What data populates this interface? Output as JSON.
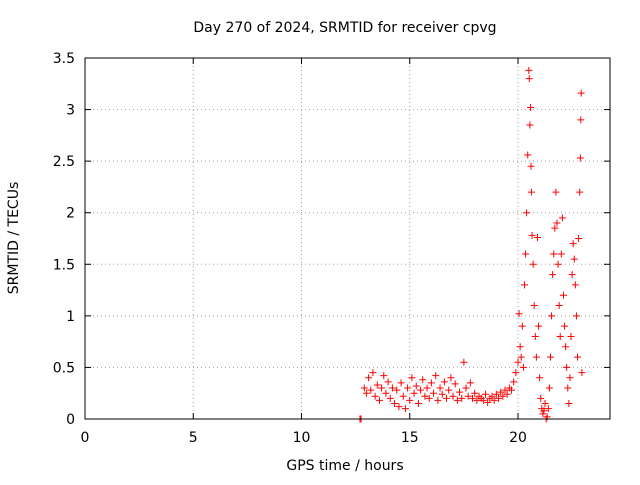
{
  "chart_data": {
    "type": "scatter",
    "title": "Day 270 of 2024, SRMTID for receiver cpvg",
    "xlabel": "GPS time / hours",
    "ylabel": "SRMTID / TECUs",
    "xlim": [
      0,
      24.25
    ],
    "ylim": [
      0,
      3.5
    ],
    "xticks": [
      0,
      5,
      10,
      15,
      20
    ],
    "xtick_labels": [
      "0",
      "5",
      "10",
      "15",
      "20"
    ],
    "yticks": [
      0,
      0.5,
      1,
      1.5,
      2,
      2.5,
      3,
      3.5
    ],
    "ytick_labels": [
      "0",
      "0.5",
      "1",
      "1.5",
      "2",
      "2.5",
      "3",
      "3.5"
    ],
    "grid": true,
    "marker": "+",
    "color": "#ff0000",
    "series": [
      {
        "name": "SRMTID",
        "points": [
          [
            12.7,
            0.0
          ],
          [
            12.75,
            0.0
          ],
          [
            12.9,
            0.3
          ],
          [
            13.0,
            0.25
          ],
          [
            13.1,
            0.4
          ],
          [
            13.2,
            0.28
          ],
          [
            13.3,
            0.45
          ],
          [
            13.4,
            0.22
          ],
          [
            13.5,
            0.33
          ],
          [
            13.6,
            0.18
          ],
          [
            13.7,
            0.3
          ],
          [
            13.8,
            0.42
          ],
          [
            13.9,
            0.25
          ],
          [
            14.0,
            0.36
          ],
          [
            14.1,
            0.2
          ],
          [
            14.2,
            0.3
          ],
          [
            14.3,
            0.15
          ],
          [
            14.4,
            0.28
          ],
          [
            14.5,
            0.12
          ],
          [
            14.6,
            0.35
          ],
          [
            14.7,
            0.22
          ],
          [
            14.8,
            0.1
          ],
          [
            14.9,
            0.3
          ],
          [
            15.0,
            0.18
          ],
          [
            15.1,
            0.4
          ],
          [
            15.2,
            0.25
          ],
          [
            15.3,
            0.32
          ],
          [
            15.4,
            0.15
          ],
          [
            15.5,
            0.28
          ],
          [
            15.6,
            0.38
          ],
          [
            15.7,
            0.22
          ],
          [
            15.8,
            0.3
          ],
          [
            15.9,
            0.2
          ],
          [
            16.0,
            0.35
          ],
          [
            16.1,
            0.25
          ],
          [
            16.2,
            0.42
          ],
          [
            16.3,
            0.18
          ],
          [
            16.4,
            0.3
          ],
          [
            16.5,
            0.24
          ],
          [
            16.6,
            0.36
          ],
          [
            16.7,
            0.2
          ],
          [
            16.8,
            0.28
          ],
          [
            16.9,
            0.4
          ],
          [
            17.0,
            0.22
          ],
          [
            17.1,
            0.34
          ],
          [
            17.2,
            0.18
          ],
          [
            17.3,
            0.26
          ],
          [
            17.4,
            0.2
          ],
          [
            17.5,
            0.55
          ],
          [
            17.6,
            0.3
          ],
          [
            17.7,
            0.22
          ],
          [
            17.8,
            0.35
          ],
          [
            17.9,
            0.2
          ],
          [
            18.0,
            0.25
          ],
          [
            18.1,
            0.18
          ],
          [
            18.2,
            0.22
          ],
          [
            18.3,
            0.2
          ],
          [
            18.4,
            0.18
          ],
          [
            18.5,
            0.24
          ],
          [
            18.6,
            0.16
          ],
          [
            18.7,
            0.2
          ],
          [
            18.8,
            0.22
          ],
          [
            18.9,
            0.18
          ],
          [
            19.0,
            0.24
          ],
          [
            19.1,
            0.2
          ],
          [
            19.2,
            0.26
          ],
          [
            19.3,
            0.22
          ],
          [
            19.4,
            0.28
          ],
          [
            19.5,
            0.24
          ],
          [
            19.6,
            0.3
          ],
          [
            19.7,
            0.28
          ],
          [
            19.8,
            0.36
          ],
          [
            19.9,
            0.45
          ],
          [
            20.0,
            0.55
          ],
          [
            20.05,
            1.02
          ],
          [
            20.1,
            0.7
          ],
          [
            20.15,
            0.6
          ],
          [
            20.2,
            0.9
          ],
          [
            20.25,
            0.5
          ],
          [
            20.3,
            1.3
          ],
          [
            20.35,
            1.6
          ],
          [
            20.4,
            2.0
          ],
          [
            20.45,
            2.56
          ],
          [
            20.5,
            3.38
          ],
          [
            20.52,
            3.3
          ],
          [
            20.55,
            2.85
          ],
          [
            20.58,
            3.02
          ],
          [
            20.6,
            2.45
          ],
          [
            20.62,
            2.2
          ],
          [
            20.65,
            1.78
          ],
          [
            20.7,
            1.5
          ],
          [
            20.75,
            1.1
          ],
          [
            20.8,
            0.8
          ],
          [
            20.85,
            0.6
          ],
          [
            20.9,
            1.76
          ],
          [
            20.95,
            0.9
          ],
          [
            21.0,
            0.4
          ],
          [
            21.05,
            0.2
          ],
          [
            21.1,
            0.1
          ],
          [
            21.15,
            0.05
          ],
          [
            21.2,
            0.08
          ],
          [
            21.25,
            0.15
          ],
          [
            21.3,
            0.0
          ],
          [
            21.35,
            0.02
          ],
          [
            21.4,
            0.1
          ],
          [
            21.45,
            0.3
          ],
          [
            21.5,
            0.6
          ],
          [
            21.55,
            1.0
          ],
          [
            21.6,
            1.4
          ],
          [
            21.65,
            1.6
          ],
          [
            21.7,
            1.85
          ],
          [
            21.75,
            2.2
          ],
          [
            21.8,
            1.9
          ],
          [
            21.85,
            1.5
          ],
          [
            21.9,
            1.1
          ],
          [
            21.95,
            0.8
          ],
          [
            22.0,
            1.6
          ],
          [
            22.05,
            1.95
          ],
          [
            22.1,
            1.2
          ],
          [
            22.15,
            0.9
          ],
          [
            22.2,
            0.7
          ],
          [
            22.25,
            0.5
          ],
          [
            22.3,
            0.3
          ],
          [
            22.35,
            0.15
          ],
          [
            22.4,
            0.4
          ],
          [
            22.45,
            0.8
          ],
          [
            22.5,
            1.4
          ],
          [
            22.55,
            1.7
          ],
          [
            22.6,
            1.55
          ],
          [
            22.65,
            1.3
          ],
          [
            22.7,
            1.0
          ],
          [
            22.75,
            0.6
          ],
          [
            22.8,
            1.75
          ],
          [
            22.85,
            2.2
          ],
          [
            22.88,
            2.53
          ],
          [
            22.9,
            2.9
          ],
          [
            22.92,
            3.16
          ],
          [
            22.95,
            0.45
          ]
        ]
      }
    ]
  }
}
